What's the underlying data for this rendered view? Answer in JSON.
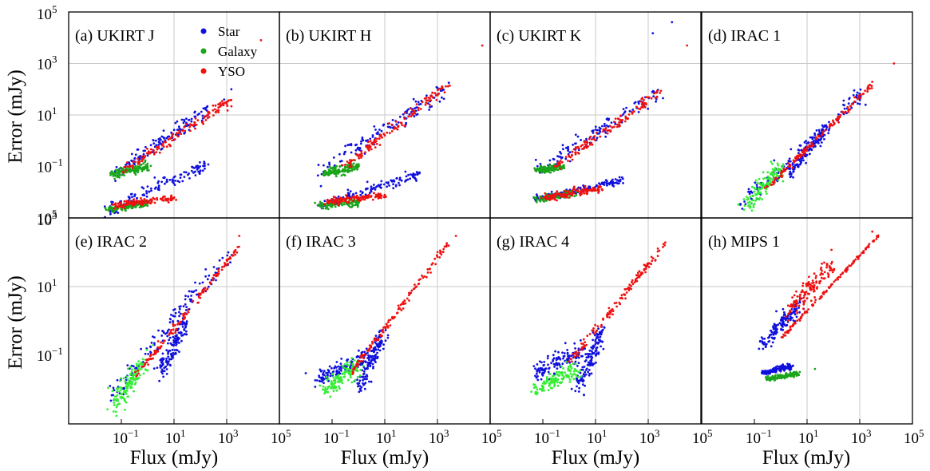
{
  "figure": {
    "ylabel": "Error (mJy)",
    "xlabel": "Flux (mJy)"
  },
  "colors": {
    "star": "#1010dd",
    "galaxy": "#1aa51a",
    "galaxy_light": "#33ee33",
    "yso": "#ee1111"
  },
  "chart_data": [
    {
      "type": "scatter",
      "title": "(a) UKIRT J",
      "xlabel": "",
      "ylabel": "Error (mJy)",
      "xscale": "log",
      "yscale": "log",
      "xlim": [
        0.001,
        100000
      ],
      "ylim": [
        0.001,
        100000
      ],
      "legend": {
        "placement": "top-center",
        "entries": [
          "Star",
          "Galaxy",
          "YSO"
        ]
      },
      "series": [
        {
          "name": "Star",
          "color": "#1010dd",
          "segments": [
            {
              "from": [
                0.04,
                0.05
              ],
              "to": [
                200,
                15
              ],
              "spread": 0.35
            },
            {
              "from": [
                0.03,
                0.002
              ],
              "to": [
                200,
                0.12
              ],
              "spread": 0.25
            }
          ],
          "outliers": [
            [
              800,
              40
            ],
            [
              1500,
              100
            ]
          ]
        },
        {
          "name": "Galaxy",
          "color": "#1aa51a",
          "segments": [
            {
              "from": [
                0.04,
                0.05
              ],
              "to": [
                1,
                0.1
              ],
              "spread": 0.2
            },
            {
              "from": [
                0.03,
                0.002
              ],
              "to": [
                1,
                0.004
              ],
              "spread": 0.15
            }
          ],
          "outliers": []
        },
        {
          "name": "YSO",
          "color": "#ee1111",
          "segments": [
            {
              "from": [
                0.1,
                0.06
              ],
              "to": [
                1500,
                40
              ],
              "spread": 0.2
            },
            {
              "from": [
                0.05,
                0.003
              ],
              "to": [
                10,
                0.006
              ],
              "spread": 0.15
            }
          ],
          "outliers": [
            [
              20000,
              8000
            ]
          ]
        }
      ]
    },
    {
      "type": "scatter",
      "title": "(b) UKIRT H",
      "xscale": "log",
      "yscale": "log",
      "xlim": [
        0.001,
        100000
      ],
      "ylim": [
        0.001,
        100000
      ],
      "series": [
        {
          "name": "Star",
          "color": "#1010dd",
          "segments": [
            {
              "from": [
                0.04,
                0.06
              ],
              "to": [
                3000,
                150
              ],
              "spread": 0.35
            },
            {
              "from": [
                0.03,
                0.003
              ],
              "to": [
                200,
                0.05
              ],
              "spread": 0.2
            }
          ],
          "outliers": []
        },
        {
          "name": "Galaxy",
          "color": "#1aa51a",
          "segments": [
            {
              "from": [
                0.05,
                0.05
              ],
              "to": [
                1,
                0.1
              ],
              "spread": 0.2
            },
            {
              "from": [
                0.03,
                0.003
              ],
              "to": [
                1,
                0.004
              ],
              "spread": 0.15
            }
          ],
          "outliers": []
        },
        {
          "name": "YSO",
          "color": "#ee1111",
          "segments": [
            {
              "from": [
                0.3,
                0.1
              ],
              "to": [
                3000,
                180
              ],
              "spread": 0.2
            },
            {
              "from": [
                0.05,
                0.004
              ],
              "to": [
                10,
                0.008
              ],
              "spread": 0.15
            }
          ],
          "outliers": [
            [
              50000,
              5000
            ]
          ]
        }
      ]
    },
    {
      "type": "scatter",
      "title": "(c) UKIRT K",
      "xscale": "log",
      "yscale": "log",
      "xlim": [
        0.001,
        100000
      ],
      "ylim": [
        0.001,
        100000
      ],
      "series": [
        {
          "name": "Star",
          "color": "#1010dd",
          "segments": [
            {
              "from": [
                0.06,
                0.07
              ],
              "to": [
                3000,
                80
              ],
              "spread": 0.35
            },
            {
              "from": [
                0.05,
                0.005
              ],
              "to": [
                100,
                0.03
              ],
              "spread": 0.15
            }
          ],
          "outliers": [
            [
              1500,
              15000
            ],
            [
              8000,
              40000
            ]
          ]
        },
        {
          "name": "Galaxy",
          "color": "#1aa51a",
          "segments": [
            {
              "from": [
                0.05,
                0.005
              ],
              "to": [
                2,
                0.01
              ],
              "spread": 0.15
            },
            {
              "from": [
                0.06,
                0.07
              ],
              "to": [
                0.6,
                0.1
              ],
              "spread": 0.15
            }
          ],
          "outliers": []
        },
        {
          "name": "YSO",
          "color": "#ee1111",
          "segments": [
            {
              "from": [
                0.3,
                0.1
              ],
              "to": [
                3000,
                80
              ],
              "spread": 0.2
            },
            {
              "from": [
                0.1,
                0.006
              ],
              "to": [
                20,
                0.015
              ],
              "spread": 0.15
            }
          ],
          "outliers": [
            [
              30000,
              5000
            ]
          ]
        }
      ]
    },
    {
      "type": "scatter",
      "title": "(d) IRAC 1",
      "xscale": "log",
      "yscale": "log",
      "xlim": [
        0.001,
        100000
      ],
      "ylim": [
        0.001,
        100000
      ],
      "series": [
        {
          "name": "Star",
          "color": "#1010dd",
          "segments": [
            {
              "from": [
                0.03,
                0.003
              ],
              "to": [
                1500,
                80
              ],
              "spread": 0.3
            },
            {
              "from": [
                2,
                0.05
              ],
              "to": [
                50,
                3
              ],
              "spread": 0.3
            }
          ],
          "outliers": []
        },
        {
          "name": "Galaxy",
          "color": "#33ee33",
          "segments": [
            {
              "from": [
                0.05,
                0.003
              ],
              "to": [
                1,
                0.1
              ],
              "spread": 0.35
            }
          ],
          "outliers": []
        },
        {
          "name": "YSO",
          "color": "#ee1111",
          "segments": [
            {
              "from": [
                0.2,
                0.01
              ],
              "to": [
                3000,
                150
              ],
              "spread": 0.12
            }
          ],
          "outliers": [
            [
              20000,
              1000
            ]
          ]
        }
      ]
    },
    {
      "type": "scatter",
      "title": "(e) IRAC 2",
      "xscale": "log",
      "yscale": "log",
      "xlim": [
        0.001,
        100000
      ],
      "ylim": [
        0.001,
        1000
      ],
      "series": [
        {
          "name": "Star",
          "color": "#1010dd",
          "segments": [
            {
              "from": [
                0.03,
                0.005
              ],
              "to": [
                1500,
                100
              ],
              "spread": 0.3
            },
            {
              "from": [
                3,
                0.03
              ],
              "to": [
                30,
                1
              ],
              "spread": 0.3
            }
          ],
          "outliers": []
        },
        {
          "name": "Galaxy",
          "color": "#33ee33",
          "segments": [
            {
              "from": [
                0.05,
                0.003
              ],
              "to": [
                1,
                0.1
              ],
              "spread": 0.35
            }
          ],
          "outliers": []
        },
        {
          "name": "YSO",
          "color": "#ee1111",
          "segments": [
            {
              "from": [
                0.3,
                0.02
              ],
              "to": [
                3000,
                150
              ],
              "spread": 0.12
            }
          ],
          "outliers": [
            [
              3000,
              300
            ]
          ]
        }
      ]
    },
    {
      "type": "scatter",
      "title": "(f) IRAC 3",
      "xscale": "log",
      "yscale": "log",
      "xlim": [
        0.001,
        100000
      ],
      "ylim": [
        0.001,
        1000
      ],
      "series": [
        {
          "name": "Star",
          "color": "#1010dd",
          "segments": [
            {
              "from": [
                0.03,
                0.02
              ],
              "to": [
                3,
                0.1
              ],
              "spread": 0.25
            },
            {
              "from": [
                1,
                0.01
              ],
              "to": [
                10,
                0.5
              ],
              "spread": 0.3
            }
          ],
          "outliers": [
            [
              0.01,
              0.03
            ]
          ]
        },
        {
          "name": "Galaxy",
          "color": "#33ee33",
          "segments": [
            {
              "from": [
                0.05,
                0.01
              ],
              "to": [
                1,
                0.05
              ],
              "spread": 0.3
            }
          ],
          "outliers": []
        },
        {
          "name": "YSO",
          "color": "#ee1111",
          "segments": [
            {
              "from": [
                0.5,
                0.03
              ],
              "to": [
                3000,
                200
              ],
              "spread": 0.12
            }
          ],
          "outliers": [
            [
              5000,
              300
            ]
          ]
        }
      ]
    },
    {
      "type": "scatter",
      "title": "(g) IRAC 4",
      "xscale": "log",
      "yscale": "log",
      "xlim": [
        0.001,
        100000
      ],
      "ylim": [
        0.001,
        1000
      ],
      "series": [
        {
          "name": "Star",
          "color": "#1010dd",
          "segments": [
            {
              "from": [
                0.05,
                0.03
              ],
              "to": [
                5,
                0.15
              ],
              "spread": 0.3
            },
            {
              "from": [
                2,
                0.01
              ],
              "to": [
                20,
                0.6
              ],
              "spread": 0.3
            }
          ],
          "outliers": []
        },
        {
          "name": "Galaxy",
          "color": "#33ee33",
          "segments": [
            {
              "from": [
                0.05,
                0.01
              ],
              "to": [
                2,
                0.04
              ],
              "spread": 0.3
            }
          ],
          "outliers": []
        },
        {
          "name": "YSO",
          "color": "#ee1111",
          "segments": [
            {
              "from": [
                1,
                0.06
              ],
              "to": [
                5000,
                200
              ],
              "spread": 0.12
            }
          ],
          "outliers": []
        }
      ]
    },
    {
      "type": "scatter",
      "title": "(h) MIPS 1",
      "xscale": "log",
      "yscale": "log",
      "xlim": [
        0.001,
        100000
      ],
      "ylim": [
        0.001,
        1000
      ],
      "series": [
        {
          "name": "Star",
          "color": "#1010dd",
          "segments": [
            {
              "from": [
                0.2,
                0.2
              ],
              "to": [
                5,
                3
              ],
              "spread": 0.25
            },
            {
              "from": [
                0.2,
                0.03
              ],
              "to": [
                3,
                0.05
              ],
              "spread": 0.08
            }
          ],
          "outliers": []
        },
        {
          "name": "Galaxy",
          "color": "#1aa51a",
          "segments": [
            {
              "from": [
                0.3,
                0.02
              ],
              "to": [
                5,
                0.03
              ],
              "spread": 0.08
            }
          ],
          "outliers": [
            [
              20,
              0.04
            ]
          ]
        },
        {
          "name": "YSO",
          "color": "#ee1111",
          "segments": [
            {
              "from": [
                1,
                0.3
              ],
              "to": [
                5000,
                300
              ],
              "spread": 0.05
            },
            {
              "from": [
                2,
                2
              ],
              "to": [
                100,
                50
              ],
              "spread": 0.35
            }
          ],
          "outliers": [
            [
              3000,
              400
            ]
          ]
        }
      ]
    }
  ]
}
